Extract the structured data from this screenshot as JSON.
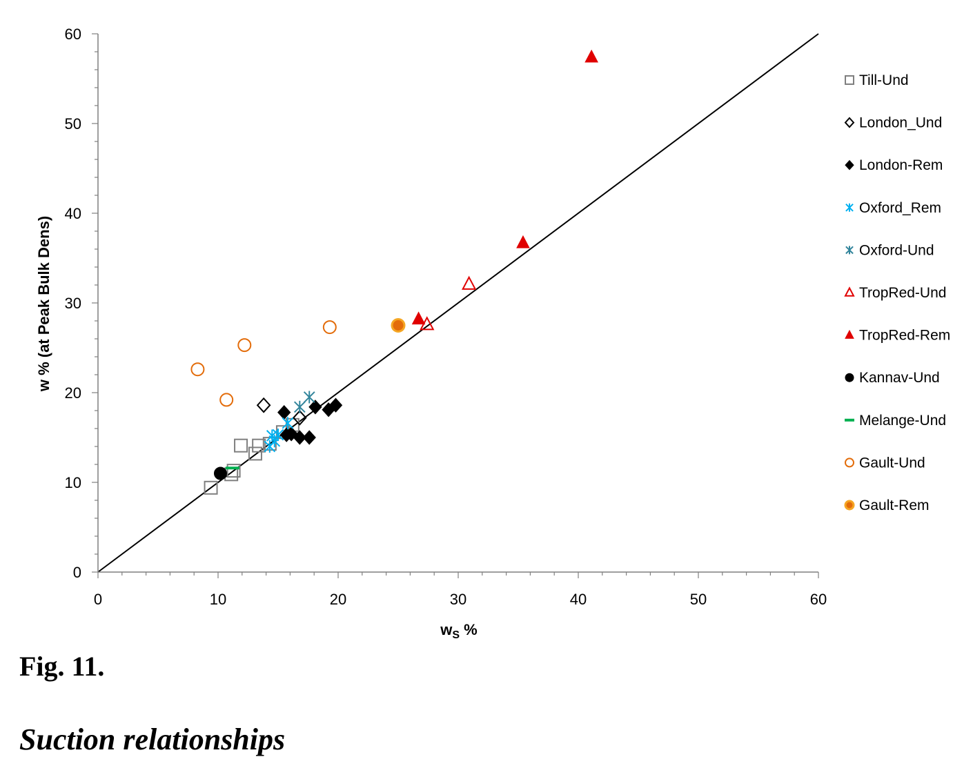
{
  "chart_data": {
    "type": "scatter",
    "xlabel": "w",
    "xlabel_sub": "S",
    "xlabel_suffix": " %",
    "ylabel": "w % (at Peak Bulk Dens)",
    "xlim": [
      0,
      60
    ],
    "ylim": [
      0,
      60
    ],
    "xticks": [
      "0",
      "10",
      "20",
      "30",
      "40",
      "50",
      "60"
    ],
    "yticks": [
      "0",
      "10",
      "20",
      "30",
      "40",
      "50",
      "60"
    ],
    "grid": false,
    "legend_position": "right",
    "reference_line": {
      "from": [
        0,
        0
      ],
      "to": [
        60,
        60
      ],
      "color": "#000000"
    },
    "series": [
      {
        "name": "Till-Und",
        "marker": "square-open",
        "color": "#7f7f7f",
        "points": [
          [
            9.4,
            9.4
          ],
          [
            11.1,
            10.9
          ],
          [
            11.3,
            11.3
          ],
          [
            11.9,
            14.1
          ],
          [
            13.1,
            13.2
          ],
          [
            13.4,
            14.1
          ],
          [
            14.3,
            14.3
          ],
          [
            15.4,
            15.6
          ],
          [
            16.2,
            16.4
          ]
        ]
      },
      {
        "name": "London_Und",
        "marker": "diamond-open",
        "color": "#000000",
        "points": [
          [
            13.8,
            18.6
          ],
          [
            16.8,
            17.2
          ]
        ]
      },
      {
        "name": "London-Rem",
        "marker": "diamond-filled",
        "color": "#000000",
        "points": [
          [
            15.5,
            17.8
          ],
          [
            15.7,
            15.3
          ],
          [
            16.1,
            15.4
          ],
          [
            16.8,
            15.0
          ],
          [
            17.6,
            15.0
          ],
          [
            18.1,
            18.4
          ],
          [
            19.2,
            18.1
          ],
          [
            19.8,
            18.6
          ]
        ]
      },
      {
        "name": "Oxford_Rem",
        "marker": "asterisk",
        "color": "#00b0f0",
        "points": [
          [
            14.3,
            14.0
          ],
          [
            14.5,
            15.2
          ],
          [
            14.7,
            14.6
          ],
          [
            15.0,
            15.3
          ],
          [
            15.8,
            16.6
          ]
        ]
      },
      {
        "name": "Oxford-Und",
        "marker": "asterisk",
        "color": "#31849b",
        "points": [
          [
            16.8,
            18.4
          ],
          [
            17.6,
            19.5
          ]
        ]
      },
      {
        "name": "TropRed-Und",
        "marker": "triangle-open",
        "color": "#e00000",
        "points": [
          [
            27.4,
            27.6
          ],
          [
            30.9,
            32.1
          ]
        ]
      },
      {
        "name": "TropRed-Rem",
        "marker": "triangle-filled",
        "color": "#e00000",
        "points": [
          [
            26.7,
            28.2
          ],
          [
            35.4,
            36.7
          ],
          [
            41.1,
            57.4
          ]
        ]
      },
      {
        "name": "Kannav-Und",
        "marker": "circle-filled",
        "color": "#000000",
        "points": [
          [
            10.2,
            11.0
          ]
        ]
      },
      {
        "name": "Melange-Und",
        "marker": "dash",
        "color": "#00b050",
        "points": [
          [
            11.2,
            11.6
          ]
        ]
      },
      {
        "name": "Gault-Und",
        "marker": "circle-open",
        "color": "#e36c0a",
        "points": [
          [
            8.3,
            22.6
          ],
          [
            10.7,
            19.2
          ],
          [
            12.2,
            25.3
          ],
          [
            19.3,
            27.3
          ]
        ]
      },
      {
        "name": "Gault-Rem",
        "marker": "circle-filled-ring",
        "color": "#e36c0a",
        "fill": "#f5a623",
        "points": [
          [
            25.0,
            27.5
          ]
        ]
      }
    ]
  },
  "caption": "Fig. 11.",
  "heading": "Suction relationships"
}
